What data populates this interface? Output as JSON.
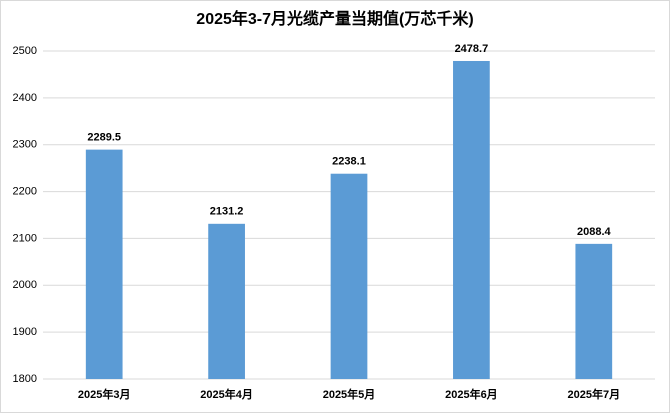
{
  "chart_data": {
    "type": "bar",
    "title": "2025年3-7月光缆产量当期值(万芯千米)",
    "categories": [
      "2025年3月",
      "2025年4月",
      "2025年5月",
      "2025年6月",
      "2025年7月"
    ],
    "values": [
      2289.5,
      2131.2,
      2238.1,
      2478.7,
      2088.4
    ],
    "color": "#5b9bd5",
    "ylim": [
      1800,
      2500
    ],
    "yticks": [
      1800,
      1900,
      2000,
      2100,
      2200,
      2300,
      2400,
      2500
    ],
    "grid": true
  }
}
